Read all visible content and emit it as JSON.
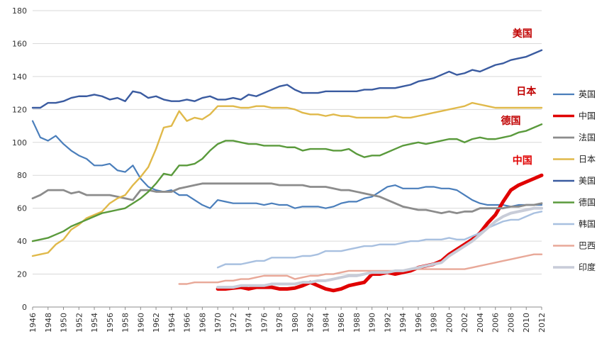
{
  "chart_data": {
    "type": "line",
    "title": "",
    "xlabel": "",
    "ylabel": "",
    "ylim": [
      0,
      180
    ],
    "xlim": [
      1946,
      2012
    ],
    "y_ticks": [
      "0",
      "20",
      "40",
      "60",
      "80",
      "100",
      "120",
      "140",
      "160",
      "180"
    ],
    "x_ticks": [
      "1946",
      "1948",
      "1950",
      "1952",
      "1954",
      "1956",
      "1958",
      "1960",
      "1962",
      "1964",
      "1966",
      "1968",
      "1970",
      "1972",
      "1974",
      "1976",
      "1978",
      "1980",
      "1982",
      "1984",
      "1986",
      "1988",
      "1990",
      "1992",
      "1994",
      "1996",
      "1998",
      "2000",
      "2002",
      "2004",
      "2006",
      "2008",
      "2010",
      "2012"
    ],
    "grid": "horizontal",
    "legend_position": "right",
    "annotations": [
      {
        "text": "美国",
        "x": 2009.5,
        "y": 164,
        "color": "#c00000"
      },
      {
        "text": "日本",
        "x": 2010,
        "y": 129,
        "color": "#c00000"
      },
      {
        "text": "德国",
        "x": 2008,
        "y": 111,
        "color": "#c00000"
      },
      {
        "text": "中国",
        "x": 2009.5,
        "y": 87,
        "color": "#e00000"
      }
    ],
    "series": [
      {
        "name": "英国",
        "color": "#4a7ebb",
        "width": 2.2,
        "x": [
          1946,
          1947,
          1948,
          1949,
          1950,
          1951,
          1952,
          1953,
          1954,
          1955,
          1956,
          1957,
          1958,
          1959,
          1960,
          1961,
          1962,
          1963,
          1964,
          1965,
          1966,
          1967,
          1968,
          1969,
          1970,
          1971,
          1972,
          1973,
          1974,
          1975,
          1976,
          1977,
          1978,
          1979,
          1980,
          1981,
          1982,
          1983,
          1984,
          1985,
          1986,
          1987,
          1988,
          1989,
          1990,
          1991,
          1992,
          1993,
          1994,
          1995,
          1996,
          1997,
          1998,
          1999,
          2000,
          2001,
          2002,
          2003,
          2004,
          2005,
          2006,
          2007,
          2008,
          2009,
          2010,
          2011,
          2012
        ],
        "y": [
          113,
          103,
          101,
          104,
          99,
          95,
          92,
          90,
          86,
          86,
          87,
          83,
          82,
          86,
          78,
          73,
          71,
          70,
          71,
          68,
          68,
          65,
          62,
          60,
          65,
          64,
          63,
          63,
          63,
          63,
          62,
          63,
          62,
          62,
          60,
          61,
          61,
          61,
          60,
          61,
          63,
          64,
          64,
          66,
          67,
          70,
          73,
          74,
          72,
          72,
          72,
          73,
          73,
          72,
          72,
          71,
          68,
          65,
          63,
          62,
          62,
          62,
          61,
          62,
          62,
          62,
          62
        ]
      },
      {
        "name": "中国",
        "color": "#e00000",
        "width": 5,
        "x": [
          1970,
          1971,
          1972,
          1973,
          1974,
          1975,
          1976,
          1977,
          1978,
          1979,
          1980,
          1981,
          1982,
          1983,
          1984,
          1985,
          1986,
          1987,
          1988,
          1989,
          1990,
          1991,
          1992,
          1993,
          1994,
          1995,
          1996,
          1997,
          1998,
          1999,
          2000,
          2001,
          2002,
          2003,
          2004,
          2005,
          2006,
          2007,
          2008,
          2009,
          2010,
          2011,
          2012
        ],
        "y": [
          11,
          11,
          11.5,
          12,
          11,
          12,
          12,
          12,
          11,
          11,
          11.5,
          13,
          15,
          13,
          11,
          10,
          11,
          13,
          14,
          15,
          20,
          20,
          21,
          20,
          21,
          22,
          24,
          25,
          26,
          28,
          32,
          35,
          38,
          41,
          45,
          51,
          56,
          64,
          71,
          74,
          76,
          78,
          80
        ]
      },
      {
        "name": "法国",
        "color": "#8c8c8c",
        "width": 2.8,
        "x": [
          1946,
          1947,
          1948,
          1949,
          1950,
          1951,
          1952,
          1953,
          1954,
          1955,
          1956,
          1957,
          1958,
          1959,
          1960,
          1961,
          1962,
          1963,
          1964,
          1965,
          1966,
          1967,
          1968,
          1969,
          1970,
          1971,
          1972,
          1973,
          1974,
          1975,
          1976,
          1977,
          1978,
          1979,
          1980,
          1981,
          1982,
          1983,
          1984,
          1985,
          1986,
          1987,
          1988,
          1989,
          1990,
          1991,
          1992,
          1993,
          1994,
          1995,
          1996,
          1997,
          1998,
          1999,
          2000,
          2001,
          2002,
          2003,
          2004,
          2005,
          2006,
          2007,
          2008,
          2009,
          2010,
          2011,
          2012
        ],
        "y": [
          66,
          68,
          71,
          71,
          71,
          69,
          70,
          68,
          68,
          68,
          68,
          67,
          66,
          65,
          71,
          71,
          70,
          70,
          70,
          72,
          73,
          74,
          75,
          75,
          75,
          75,
          75,
          75,
          75,
          75,
          75,
          75,
          74,
          74,
          74,
          74,
          73,
          73,
          73,
          72,
          71,
          71,
          70,
          69,
          68,
          67,
          65,
          63,
          61,
          60,
          59,
          59,
          58,
          57,
          58,
          57,
          58,
          58,
          60,
          60,
          60,
          60,
          61,
          61,
          62,
          62,
          63
        ]
      },
      {
        "name": "日本",
        "color": "#e0b94a",
        "width": 2.4,
        "x": [
          1946,
          1947,
          1948,
          1949,
          1950,
          1951,
          1952,
          1953,
          1954,
          1955,
          1956,
          1957,
          1958,
          1959,
          1960,
          1961,
          1962,
          1963,
          1964,
          1965,
          1966,
          1967,
          1968,
          1969,
          1970,
          1971,
          1972,
          1973,
          1974,
          1975,
          1976,
          1977,
          1978,
          1979,
          1980,
          1981,
          1982,
          1983,
          1984,
          1985,
          1986,
          1987,
          1988,
          1989,
          1990,
          1991,
          1992,
          1993,
          1994,
          1995,
          1996,
          1997,
          1998,
          1999,
          2000,
          2001,
          2002,
          2003,
          2004,
          2005,
          2006,
          2007,
          2008,
          2009,
          2010,
          2011,
          2012
        ],
        "y": [
          31,
          32,
          33,
          38,
          41,
          47,
          50,
          54,
          56,
          58,
          63,
          66,
          68,
          74,
          79,
          85,
          96,
          109,
          110,
          119,
          113,
          115,
          114,
          117,
          122,
          122,
          122,
          121,
          121,
          122,
          122,
          121,
          121,
          121,
          120,
          118,
          117,
          117,
          116,
          117,
          116,
          116,
          115,
          115,
          115,
          115,
          115,
          116,
          115,
          115,
          116,
          117,
          118,
          119,
          120,
          121,
          122,
          124,
          123,
          122,
          121,
          121,
          121,
          121,
          121,
          121,
          121
        ]
      },
      {
        "name": "美国",
        "color": "#3a5ba0",
        "width": 2.4,
        "x": [
          1946,
          1947,
          1948,
          1949,
          1950,
          1951,
          1952,
          1953,
          1954,
          1955,
          1956,
          1957,
          1958,
          1959,
          1960,
          1961,
          1962,
          1963,
          1964,
          1965,
          1966,
          1967,
          1968,
          1969,
          1970,
          1971,
          1972,
          1973,
          1974,
          1975,
          1976,
          1977,
          1978,
          1979,
          1980,
          1981,
          1982,
          1983,
          1984,
          1985,
          1986,
          1987,
          1988,
          1989,
          1990,
          1991,
          1992,
          1993,
          1994,
          1995,
          1996,
          1997,
          1998,
          1999,
          2000,
          2001,
          2002,
          2003,
          2004,
          2005,
          2006,
          2007,
          2008,
          2009,
          2010,
          2011,
          2012
        ],
        "y": [
          121,
          121,
          124,
          124,
          125,
          127,
          128,
          128,
          129,
          128,
          126,
          127,
          125,
          131,
          130,
          127,
          128,
          126,
          125,
          125,
          126,
          125,
          127,
          128,
          126,
          126,
          127,
          126,
          129,
          128,
          130,
          132,
          134,
          135,
          132,
          130,
          130,
          130,
          131,
          131,
          131,
          131,
          131,
          132,
          132,
          133,
          133,
          133,
          134,
          135,
          137,
          138,
          139,
          141,
          143,
          141,
          142,
          144,
          143,
          145,
          147,
          148,
          150,
          151,
          152,
          154,
          156
        ]
      },
      {
        "name": "德国",
        "color": "#5a9a3c",
        "width": 2.4,
        "x": [
          1946,
          1947,
          1948,
          1949,
          1950,
          1951,
          1952,
          1953,
          1954,
          1955,
          1956,
          1957,
          1958,
          1959,
          1960,
          1961,
          1962,
          1963,
          1964,
          1965,
          1966,
          1967,
          1968,
          1969,
          1970,
          1971,
          1972,
          1973,
          1974,
          1975,
          1976,
          1977,
          1978,
          1979,
          1980,
          1981,
          1982,
          1983,
          1984,
          1985,
          1986,
          1987,
          1988,
          1989,
          1990,
          1991,
          1992,
          1993,
          1994,
          1995,
          1996,
          1997,
          1998,
          1999,
          2000,
          2001,
          2002,
          2003,
          2004,
          2005,
          2006,
          2007,
          2008,
          2009,
          2010,
          2011,
          2012
        ],
        "y": [
          40,
          41,
          42,
          44,
          46,
          49,
          51,
          53,
          55,
          57,
          58,
          59,
          60,
          63,
          66,
          70,
          75,
          81,
          80,
          86,
          86,
          87,
          90,
          95,
          99,
          101,
          101,
          100,
          99,
          99,
          98,
          98,
          98,
          97,
          97,
          95,
          96,
          96,
          96,
          95,
          95,
          96,
          93,
          91,
          92,
          92,
          94,
          96,
          98,
          99,
          100,
          99,
          100,
          101,
          102,
          102,
          100,
          102,
          103,
          102,
          102,
          103,
          104,
          106,
          107,
          109,
          111
        ]
      },
      {
        "name": "韩国",
        "color": "#a8c0e0",
        "width": 2.4,
        "x": [
          1970,
          1971,
          1972,
          1973,
          1974,
          1975,
          1976,
          1977,
          1978,
          1979,
          1980,
          1981,
          1982,
          1983,
          1984,
          1985,
          1986,
          1987,
          1988,
          1989,
          1990,
          1991,
          1992,
          1993,
          1994,
          1995,
          1996,
          1997,
          1998,
          1999,
          2000,
          2001,
          2002,
          2003,
          2004,
          2005,
          2006,
          2007,
          2008,
          2009,
          2010,
          2011,
          2012
        ],
        "y": [
          24,
          26,
          26,
          26,
          27,
          28,
          28,
          30,
          30,
          30,
          30,
          31,
          31,
          32,
          34,
          34,
          34,
          35,
          36,
          37,
          37,
          38,
          38,
          38,
          39,
          40,
          40,
          41,
          41,
          41,
          42,
          41,
          41,
          43,
          45,
          48,
          50,
          52,
          53,
          53,
          55,
          57,
          58
        ]
      },
      {
        "name": "巴西",
        "color": "#e8a898",
        "width": 2.4,
        "x": [
          1965,
          1966,
          1967,
          1968,
          1969,
          1970,
          1971,
          1972,
          1973,
          1974,
          1975,
          1976,
          1977,
          1978,
          1979,
          1980,
          1981,
          1982,
          1983,
          1984,
          1985,
          1986,
          1987,
          1988,
          1989,
          1990,
          1991,
          1992,
          1993,
          1994,
          1995,
          1996,
          1997,
          1998,
          1999,
          2000,
          2001,
          2002,
          2003,
          2004,
          2005,
          2006,
          2007,
          2008,
          2009,
          2010,
          2011,
          2012
        ],
        "y": [
          14,
          14,
          15,
          15,
          15,
          15,
          16,
          16,
          17,
          17,
          18,
          19,
          19,
          19,
          19,
          17,
          18,
          19,
          19,
          20,
          20,
          21,
          22,
          22,
          22,
          22,
          22,
          22,
          22,
          22,
          23,
          23,
          23,
          23,
          23,
          23,
          23,
          23,
          24,
          25,
          26,
          27,
          28,
          29,
          30,
          31,
          32,
          32
        ]
      },
      {
        "name": "印度",
        "color": "#c8ccd8",
        "width": 4,
        "x": [
          1970,
          1971,
          1972,
          1973,
          1974,
          1975,
          1976,
          1977,
          1978,
          1979,
          1980,
          1981,
          1982,
          1983,
          1984,
          1985,
          1986,
          1987,
          1988,
          1989,
          1990,
          1991,
          1992,
          1993,
          1994,
          1995,
          1996,
          1997,
          1998,
          1999,
          2000,
          2001,
          2002,
          2003,
          2004,
          2005,
          2006,
          2007,
          2008,
          2009,
          2010,
          2011,
          2012
        ],
        "y": [
          12,
          12,
          12,
          13,
          13,
          13,
          13,
          14,
          14,
          14,
          14,
          15,
          15,
          16,
          16,
          17,
          18,
          19,
          19,
          20,
          21,
          21,
          21,
          22,
          22,
          23,
          24,
          25,
          26,
          27,
          31,
          34,
          37,
          40,
          44,
          48,
          52,
          55,
          57,
          58,
          59,
          60,
          60
        ]
      }
    ]
  }
}
